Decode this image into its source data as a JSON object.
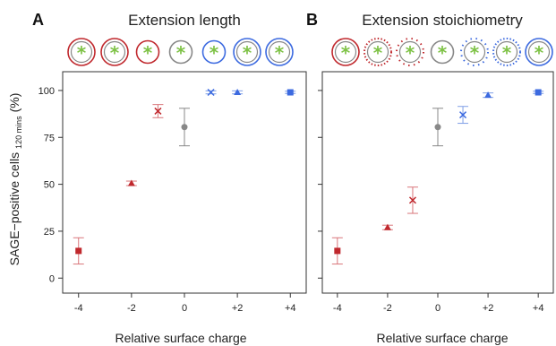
{
  "colors": {
    "red": "#c0282d",
    "red_light": "#d9767a",
    "grey": "#888888",
    "blue": "#3c6ae0",
    "blue_light": "#7f9fe6",
    "star": "#7ec246"
  },
  "y_axis": {
    "label_main": "SAGE−positive cells",
    "label_sub": "120 mins",
    "label_unit": "(%)",
    "ticks": [
      0,
      25,
      50,
      75,
      100
    ],
    "tick_labels": [
      "0",
      "25",
      "50",
      "75",
      "100"
    ]
  },
  "chart_data": [
    {
      "type": "scatter",
      "panel_letter": "A",
      "title": "Extension length",
      "xlabel": "Relative surface charge",
      "ylabel": "SAGE−positive cells 120 mins (%)",
      "x_ticks": [
        -4,
        -2,
        0,
        2,
        4
      ],
      "x_tick_labels": [
        "-4",
        "-2",
        "0",
        "+2",
        "+4"
      ],
      "xlim": [
        -4.6,
        4.6
      ],
      "ylim": [
        -8,
        110
      ],
      "legend_icons": [
        {
          "ring": "red",
          "style": "double"
        },
        {
          "ring": "red",
          "style": "double"
        },
        {
          "ring": "red",
          "style": "single"
        },
        {
          "ring": "grey",
          "style": "single"
        },
        {
          "ring": "blue",
          "style": "single"
        },
        {
          "ring": "blue",
          "style": "double"
        },
        {
          "ring": "blue",
          "style": "double"
        }
      ],
      "points": [
        {
          "x": -4,
          "y": 14.5,
          "err": 7,
          "marker": "square",
          "color": "red"
        },
        {
          "x": -2,
          "y": 50.5,
          "err": 1.2,
          "marker": "triangle",
          "color": "red"
        },
        {
          "x": -1,
          "y": 89,
          "err": 3.5,
          "marker": "x",
          "color": "red"
        },
        {
          "x": 0,
          "y": 80.5,
          "err": 10,
          "marker": "circle",
          "color": "grey"
        },
        {
          "x": 1,
          "y": 99,
          "err": 0.8,
          "marker": "x",
          "color": "blue"
        },
        {
          "x": 2,
          "y": 99,
          "err": 0.8,
          "marker": "triangle",
          "color": "blue"
        },
        {
          "x": 4,
          "y": 99,
          "err": 0.6,
          "marker": "square",
          "color": "blue"
        }
      ]
    },
    {
      "type": "scatter",
      "panel_letter": "B",
      "title": "Extension stoichiometry",
      "xlabel": "Relative surface charge",
      "ylabel": "SAGE−positive cells 120 mins (%)",
      "x_ticks": [
        -4,
        -2,
        0,
        2,
        4
      ],
      "x_tick_labels": [
        "-4",
        "-2",
        "0",
        "+2",
        "+4"
      ],
      "xlim": [
        -4.6,
        4.6
      ],
      "ylim": [
        -8,
        110
      ],
      "legend_icons": [
        {
          "ring": "red",
          "style": "double"
        },
        {
          "ring": "red",
          "style": "dotted"
        },
        {
          "ring": "red",
          "style": "dotted-sparse"
        },
        {
          "ring": "grey",
          "style": "single"
        },
        {
          "ring": "blue",
          "style": "dotted-sparse"
        },
        {
          "ring": "blue",
          "style": "dotted"
        },
        {
          "ring": "blue",
          "style": "double"
        }
      ],
      "points": [
        {
          "x": -4,
          "y": 14.5,
          "err": 7,
          "marker": "square",
          "color": "red"
        },
        {
          "x": -2,
          "y": 27,
          "err": 1.2,
          "marker": "triangle",
          "color": "red"
        },
        {
          "x": -1,
          "y": 41.5,
          "err": 7,
          "marker": "x",
          "color": "red"
        },
        {
          "x": 0,
          "y": 80.5,
          "err": 10,
          "marker": "circle",
          "color": "grey"
        },
        {
          "x": 1,
          "y": 87,
          "err": 4.5,
          "marker": "x",
          "color": "blue"
        },
        {
          "x": 2,
          "y": 97.5,
          "err": 1.2,
          "marker": "triangle",
          "color": "blue"
        },
        {
          "x": 4,
          "y": 99,
          "err": 0.6,
          "marker": "square",
          "color": "blue"
        }
      ]
    }
  ]
}
